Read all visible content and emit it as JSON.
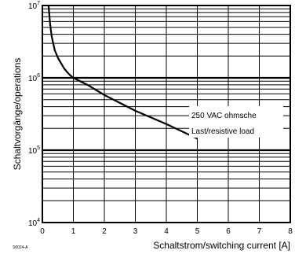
{
  "chart_data": {
    "type": "line",
    "title": "",
    "xlabel": "Schaltstrom/switching current [A]",
    "ylabel": "Schaltvorgänge/operations",
    "x_scale": "linear",
    "y_scale": "log",
    "xlim": [
      0,
      8
    ],
    "ylim": [
      10000,
      10000000
    ],
    "x_ticks": [
      "0",
      "1",
      "2",
      "3",
      "4",
      "5",
      "6",
      "7",
      "8"
    ],
    "y_ticks": [
      {
        "value": 10000000,
        "base": "10",
        "exp": "7"
      },
      {
        "value": 1000000,
        "base": "10",
        "exp": "6"
      },
      {
        "value": 100000,
        "base": "10",
        "exp": "5"
      },
      {
        "value": 10000,
        "base": "10",
        "exp": "4"
      }
    ],
    "grid": true,
    "series": [
      {
        "name": "",
        "x": [
          0.2,
          0.25,
          0.3,
          0.4,
          0.5,
          0.6,
          0.7,
          0.8,
          0.9,
          1.0,
          1.5,
          2.0,
          3.0,
          4.0,
          5.0
        ],
        "y": [
          10000000,
          5500000,
          3800000,
          2400000,
          1900000,
          1600000,
          1350000,
          1200000,
          1080000,
          1000000,
          780000,
          580000,
          350000,
          230000,
          145000
        ]
      }
    ],
    "annotations": [
      "250 VAC ohmsche",
      "Last/resistive load"
    ],
    "figure_code": "S0024-A"
  }
}
